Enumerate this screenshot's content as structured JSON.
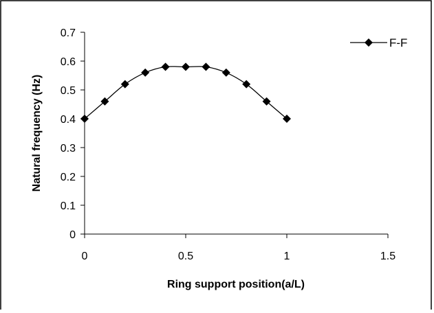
{
  "chart_data": {
    "type": "line",
    "title": "",
    "xlabel": "Ring support position(a/L)",
    "ylabel": "Natural frequency (Hz)",
    "xlim": [
      0,
      1.5
    ],
    "ylim": [
      0,
      0.7
    ],
    "x_ticks": [
      "0",
      "0.5",
      "1",
      "1.5"
    ],
    "y_ticks": [
      "0",
      "0.1",
      "0.2",
      "0.3",
      "0.4",
      "0.5",
      "0.6",
      "0.7"
    ],
    "grid": false,
    "legend_position": "top-right",
    "series": [
      {
        "name": "F-F",
        "marker": "diamond",
        "color": "#000000",
        "x": [
          0,
          0.1,
          0.2,
          0.3,
          0.4,
          0.5,
          0.6,
          0.7,
          0.8,
          0.9,
          1.0
        ],
        "y": [
          0.4,
          0.46,
          0.52,
          0.56,
          0.58,
          0.58,
          0.58,
          0.56,
          0.52,
          0.46,
          0.4
        ]
      }
    ]
  }
}
